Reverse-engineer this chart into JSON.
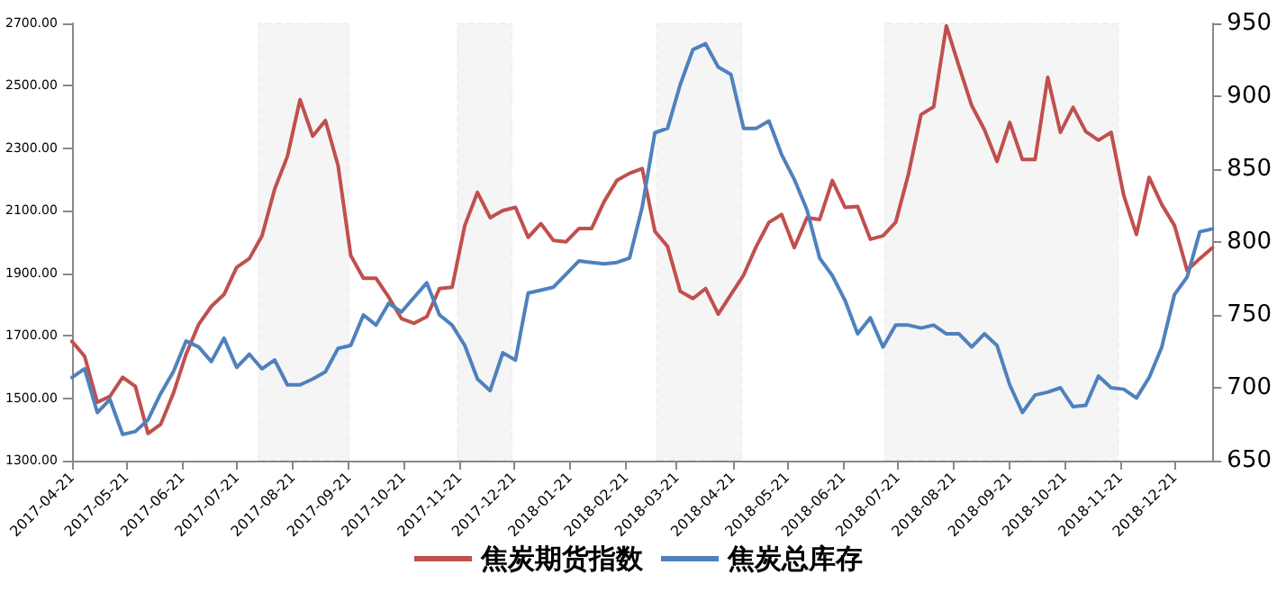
{
  "chart_data": {
    "type": "line",
    "x": [
      "2017-04-21",
      "2017-04-28",
      "2017-05-05",
      "2017-05-12",
      "2017-05-19",
      "2017-05-26",
      "2017-06-02",
      "2017-06-09",
      "2017-06-16",
      "2017-06-23",
      "2017-06-30",
      "2017-07-07",
      "2017-07-14",
      "2017-07-21",
      "2017-07-28",
      "2017-08-04",
      "2017-08-11",
      "2017-08-18",
      "2017-08-25",
      "2017-09-01",
      "2017-09-08",
      "2017-09-15",
      "2017-09-22",
      "2017-09-29",
      "2017-10-06",
      "2017-10-13",
      "2017-10-20",
      "2017-10-27",
      "2017-11-03",
      "2017-11-10",
      "2017-11-17",
      "2017-11-24",
      "2017-12-01",
      "2017-12-08",
      "2017-12-15",
      "2017-12-22",
      "2017-12-29",
      "2018-01-05",
      "2018-01-12",
      "2018-01-19",
      "2018-01-26",
      "2018-02-02",
      "2018-02-09",
      "2018-02-16",
      "2018-02-23",
      "2018-03-02",
      "2018-03-09",
      "2018-03-16",
      "2018-03-23",
      "2018-03-30",
      "2018-04-06",
      "2018-04-13",
      "2018-04-20",
      "2018-04-27",
      "2018-05-04",
      "2018-05-11",
      "2018-05-18",
      "2018-05-25",
      "2018-06-01",
      "2018-06-08",
      "2018-06-15",
      "2018-06-22",
      "2018-06-29",
      "2018-07-06",
      "2018-07-13",
      "2018-07-20",
      "2018-07-27",
      "2018-08-03",
      "2018-08-10",
      "2018-08-17",
      "2018-08-24",
      "2018-08-31",
      "2018-09-07",
      "2018-09-14",
      "2018-09-21",
      "2018-09-28",
      "2018-10-05",
      "2018-10-12",
      "2018-10-19",
      "2018-10-26",
      "2018-11-02",
      "2018-11-09",
      "2018-11-16",
      "2018-11-23",
      "2018-11-30",
      "2018-12-07",
      "2018-12-14",
      "2018-12-21",
      "2018-12-28",
      "2019-01-04",
      "2019-01-11"
    ],
    "series": [
      {
        "name": "焦炭期货指数",
        "color": "#c0504d",
        "values": [
          1682,
          1634,
          1487,
          1506,
          1567,
          1538,
          1387,
          1416,
          1515,
          1640,
          1736,
          1794,
          1832,
          1919,
          1947,
          2020,
          2170,
          2274,
          2456,
          2339,
          2389,
          2245,
          1957,
          1884,
          1884,
          1823,
          1755,
          1740,
          1761,
          1851,
          1855,
          2053,
          2159,
          2078,
          2101,
          2111,
          2015,
          2059,
          2005,
          2001,
          2043,
          2043,
          2130,
          2197,
          2220,
          2235,
          2034,
          1986,
          1842,
          1819,
          1851,
          1769,
          1832,
          1894,
          1986,
          2063,
          2088,
          1982,
          2078,
          2072,
          2197,
          2111,
          2114,
          2009,
          2020,
          2063,
          2216,
          2408,
          2433,
          2692,
          2562,
          2437,
          2360,
          2258,
          2383,
          2264,
          2264,
          2527,
          2351,
          2431,
          2354,
          2326,
          2351,
          2149,
          2024,
          2207,
          2120,
          2053,
          1909,
          1947,
          1982
        ]
      },
      {
        "name": "焦炭总库存",
        "color": "#4f81bd",
        "axis": "y2",
        "values": [
          707,
          713,
          683,
          692,
          668,
          670,
          678,
          696,
          711,
          732,
          728,
          718,
          734,
          714,
          723,
          713,
          719,
          702,
          702,
          706,
          711,
          727,
          729,
          750,
          743,
          758,
          752,
          762,
          772,
          750,
          743,
          729,
          706,
          698,
          724,
          719,
          765,
          767,
          769,
          778,
          787,
          786,
          785,
          786,
          789,
          824,
          875,
          878,
          908,
          932,
          936,
          920,
          915,
          878,
          878,
          883,
          860,
          843,
          822,
          789,
          777,
          760,
          737,
          748,
          728,
          743,
          743,
          741,
          743,
          737,
          737,
          728,
          737,
          729,
          702,
          683,
          695,
          697,
          700,
          687,
          688,
          708,
          700,
          699,
          693,
          707,
          728,
          764,
          776,
          807,
          809
        ]
      }
    ],
    "xlim": [
      "2017-04-21",
      "2019-01-11"
    ],
    "xticks": [
      "2017-04-21",
      "2017-05-21",
      "2017-06-21",
      "2017-07-21",
      "2017-08-21",
      "2017-09-21",
      "2017-10-21",
      "2017-11-21",
      "2017-12-21",
      "2018-01-21",
      "2018-02-21",
      "2018-03-21",
      "2018-04-21",
      "2018-05-21",
      "2018-06-21",
      "2018-07-21",
      "2018-08-21",
      "2018-09-21",
      "2018-10-21",
      "2018-11-21",
      "2018-12-21"
    ],
    "ylim": [
      1300,
      2700
    ],
    "yticks": [
      {
        "value": 1300,
        "label": "1300.00"
      },
      {
        "value": 1500,
        "label": "1500.00"
      },
      {
        "value": 1700,
        "label": "1700.00"
      },
      {
        "value": 1900,
        "label": "1900.00"
      },
      {
        "value": 2100,
        "label": "2100.00"
      },
      {
        "value": 2300,
        "label": "2300.00"
      },
      {
        "value": 2500,
        "label": "2500.00"
      },
      {
        "value": 2700,
        "label": "2700.00"
      }
    ],
    "y2lim": [
      650,
      950
    ],
    "y2ticks": [
      650,
      700,
      750,
      800,
      850,
      900,
      950
    ],
    "bands": [
      {
        "axis": "x",
        "from": "2017-08-02",
        "to": "2017-09-21",
        "color": "#000000"
      },
      {
        "axis": "x",
        "from": "2017-11-20",
        "to": "2017-12-20",
        "color": "#000000"
      },
      {
        "axis": "x",
        "from": "2018-03-10",
        "to": "2018-04-26",
        "color": "#000000"
      },
      {
        "axis": "x",
        "from": "2018-07-14",
        "to": "2018-11-20",
        "color": "#000000"
      }
    ],
    "grid": false,
    "legend": "bottom",
    "marker": "none",
    "line_style": "solid"
  }
}
